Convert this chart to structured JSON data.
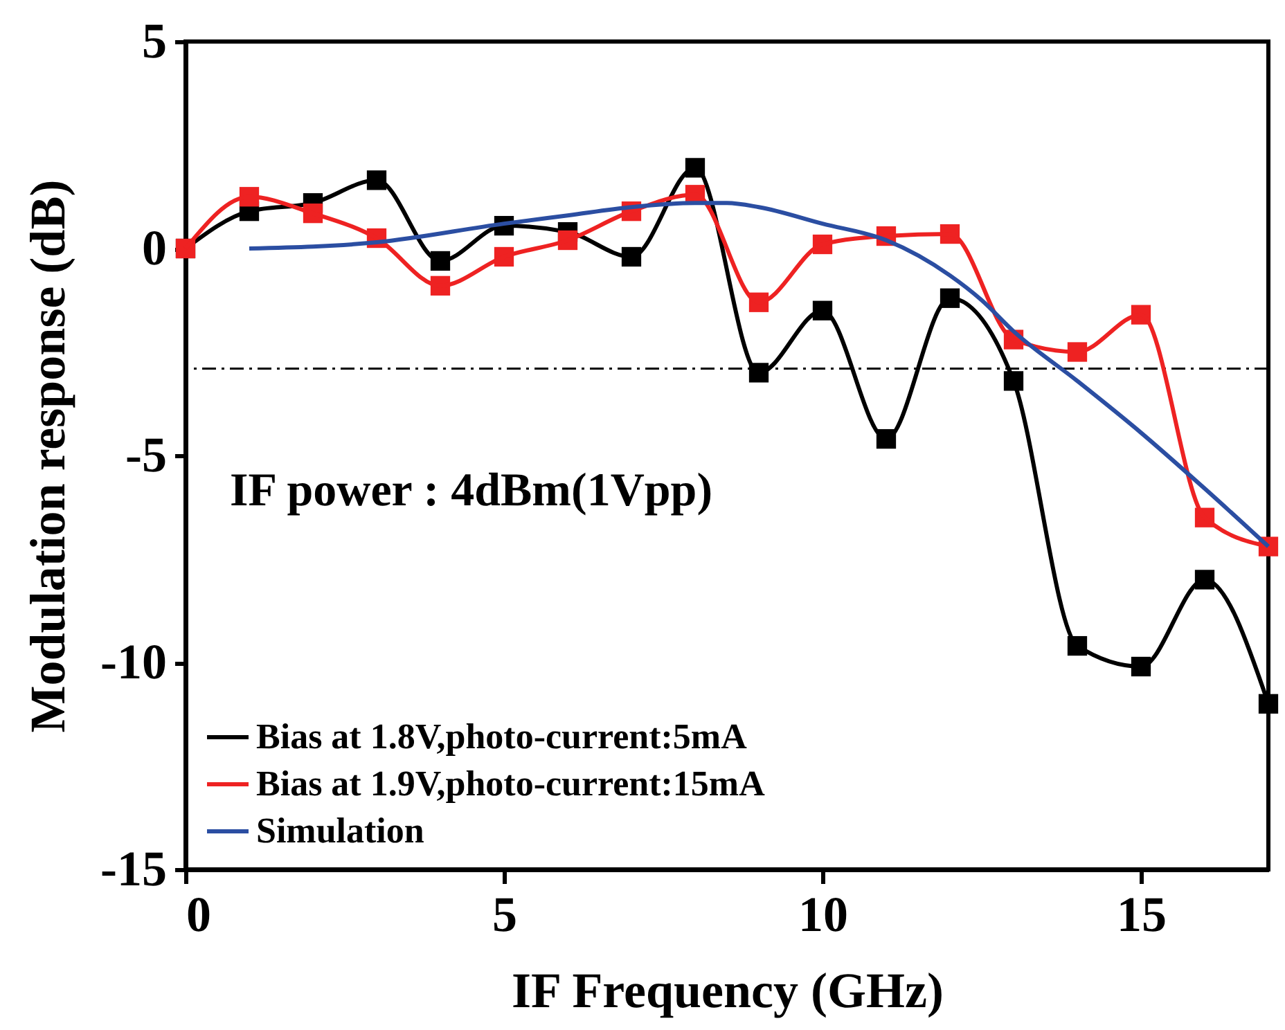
{
  "chart_data": {
    "type": "line",
    "xlabel": "IF Frequency (GHz)",
    "ylabel": "Modulation response (dB)",
    "xlim": [
      0,
      17
    ],
    "xticks": [
      0,
      5,
      10,
      15
    ],
    "ylim": [
      -15,
      5
    ],
    "yticks": [
      -15,
      -10,
      -5,
      0,
      5
    ],
    "x": [
      0,
      1,
      2,
      3,
      4,
      5,
      6,
      7,
      8,
      9,
      10,
      11,
      12,
      13,
      14,
      15,
      16,
      17
    ],
    "series": [
      {
        "name": "Bias at 1.8V,photo-current:5mA",
        "color": "#000000",
        "marker": "square",
        "values": [
          0,
          0.9,
          1.1,
          1.65,
          -0.3,
          0.55,
          0.4,
          -0.2,
          1.95,
          -3.0,
          -1.5,
          -4.6,
          -1.2,
          -3.2,
          -9.6,
          -10.1,
          -8.0,
          -11.0
        ]
      },
      {
        "name": "Bias at 1.9V,photo-current:15mA",
        "color": "#ee2222",
        "marker": "square",
        "values": [
          0,
          1.25,
          0.85,
          0.25,
          -0.9,
          -0.2,
          0.2,
          0.9,
          1.3,
          -1.3,
          0.1,
          0.3,
          0.35,
          -2.2,
          -2.5,
          -1.6,
          -6.5,
          -7.2
        ]
      },
      {
        "name": "Simulation",
        "color": "#2b4ea2",
        "marker": "none",
        "x": [
          1,
          3,
          5,
          6,
          7,
          8,
          8.5,
          9,
          10,
          11,
          12,
          12.5,
          13,
          14,
          15,
          16,
          17
        ],
        "values": [
          0,
          0.15,
          0.6,
          0.8,
          1.0,
          1.1,
          1.1,
          1.0,
          0.6,
          0.2,
          -0.65,
          -1.25,
          -2.0,
          -3.2,
          -4.45,
          -5.8,
          -7.2
        ]
      }
    ],
    "ref_lines": [
      {
        "axis": "y",
        "value": -2.9,
        "color": "#000000",
        "line_style": "dashdot"
      }
    ],
    "annotations": [
      "IF power : 4dBm(1Vpp)"
    ],
    "legend": "bottom left",
    "grid": false
  }
}
